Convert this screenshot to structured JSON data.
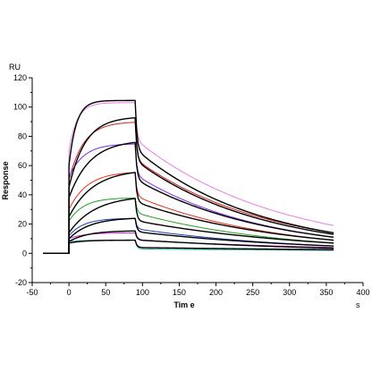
{
  "chart_data": {
    "type": "line",
    "xlabel": "Tim e",
    "ylabel": "Response",
    "x_unit": "s",
    "y_unit": "RU",
    "xlim": [
      -50,
      400
    ],
    "ylim": [
      -20,
      120
    ],
    "xticks": [
      -50,
      0,
      50,
      100,
      150,
      200,
      250,
      300,
      350,
      400
    ],
    "yticks": [
      -20,
      0,
      20,
      40,
      60,
      80,
      100,
      120
    ],
    "grid": false,
    "phases": {
      "association_start": 0,
      "dissociation_start": 90,
      "end": 360
    },
    "series": [
      {
        "kind": "fit",
        "color": "#000000",
        "jump": 60,
        "plateau": 104.5,
        "kon": 0.1,
        "diss_drop": 33,
        "diss_tail": 14
      },
      {
        "kind": "fit",
        "color": "#000000",
        "jump": 45,
        "plateau": 93.5,
        "kon": 0.045,
        "diss_drop": 29,
        "diss_tail": 13
      },
      {
        "kind": "fit",
        "color": "#000000",
        "jump": 38,
        "plateau": 77.5,
        "kon": 0.035,
        "diss_drop": 25,
        "diss_tail": 11
      },
      {
        "kind": "fit",
        "color": "#000000",
        "jump": 25,
        "plateau": 57.5,
        "kon": 0.03,
        "diss_drop": 20,
        "diss_tail": 9
      },
      {
        "kind": "fit",
        "color": "#000000",
        "jump": 14,
        "plateau": 39.5,
        "kon": 0.028,
        "diss_drop": 15,
        "diss_tail": 7
      },
      {
        "kind": "fit",
        "color": "#000000",
        "jump": 10,
        "plateau": 24.5,
        "kon": 0.035,
        "diss_drop": 9,
        "diss_tail": 5
      },
      {
        "kind": "fit",
        "color": "#000000",
        "jump": 8,
        "plateau": 15.5,
        "kon": 0.04,
        "diss_drop": 6,
        "diss_tail": 3.5
      },
      {
        "kind": "fit",
        "color": "#000000",
        "jump": 7,
        "plateau": 9,
        "kon": 0.05,
        "diss_drop": 5,
        "diss_tail": 2.5
      },
      {
        "kind": "data",
        "color": "#e87be8",
        "jump": 70,
        "plateau": 103,
        "kon": 0.09,
        "diss_drop": 25,
        "diss_tail": 19
      },
      {
        "kind": "data",
        "color": "#cc2222",
        "jump": 50,
        "plateau": 90,
        "kon": 0.05,
        "diss_drop": 25,
        "diss_tail": 14
      },
      {
        "kind": "data",
        "color": "#7a2be8",
        "jump": 52,
        "plateau": 75,
        "kon": 0.05,
        "diss_drop": 21,
        "diss_tail": 11
      },
      {
        "kind": "data",
        "color": "#e2321a",
        "jump": 30,
        "plateau": 56,
        "kon": 0.04,
        "diss_drop": 16,
        "diss_tail": 9
      },
      {
        "kind": "data",
        "color": "#22a022",
        "jump": 22,
        "plateau": 38,
        "kon": 0.05,
        "diss_drop": 10,
        "diss_tail": 7
      },
      {
        "kind": "data",
        "color": "#1f3fb5",
        "jump": 12,
        "plateau": 24,
        "kon": 0.05,
        "diss_drop": 7,
        "diss_tail": 5
      },
      {
        "kind": "data",
        "color": "#cc33cc",
        "jump": 10,
        "plateau": 14,
        "kon": 0.05,
        "diss_drop": 5,
        "diss_tail": 4
      },
      {
        "kind": "data",
        "color": "#2aa6a6",
        "jump": 8,
        "plateau": 9,
        "kon": 0.06,
        "diss_drop": 6,
        "diss_tail": 2
      }
    ]
  }
}
